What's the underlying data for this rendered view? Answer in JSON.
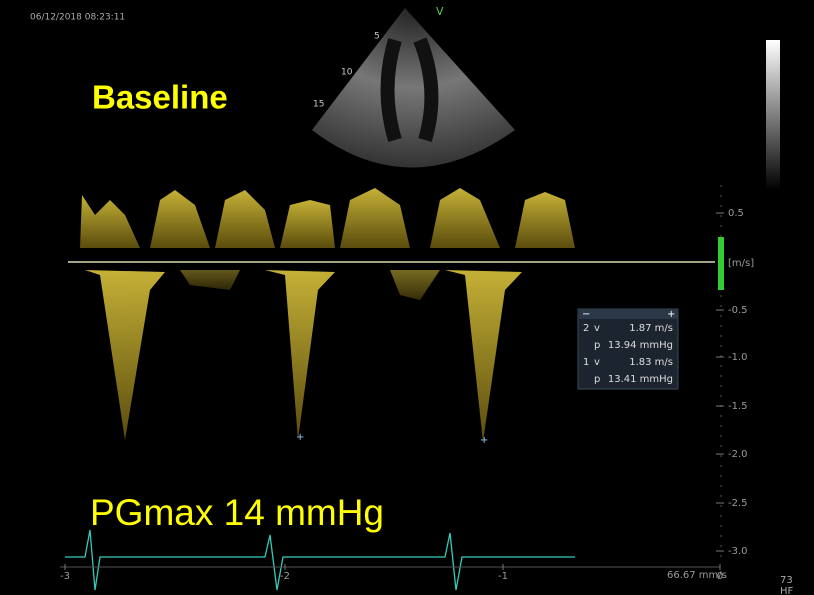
{
  "timestamp": "06/12/2018 08:23:11",
  "sector": {
    "marker": "V",
    "depths": [
      "5",
      "10",
      "15"
    ]
  },
  "labels": {
    "title": "Baseline",
    "result": "PGmax 14 mmHg"
  },
  "velocity_scale": {
    "unit": "[m/s]",
    "ticks": [
      "0.5",
      "-0.5",
      "-1.0",
      "-1.5",
      "-2.0",
      "-2.5",
      "-3.0"
    ]
  },
  "time_axis": {
    "ticks": [
      "-3",
      "-2",
      "-1",
      "0"
    ],
    "sweep": "66.67 mm/s"
  },
  "measurements": {
    "rows": [
      {
        "id": "2",
        "key": "v",
        "value": "1.87 m/s"
      },
      {
        "key": "p",
        "value": "13.94 mmHg"
      },
      {
        "id": "1",
        "key": "v",
        "value": "1.83 m/s"
      },
      {
        "key": "p",
        "value": "13.41 mmHg"
      }
    ]
  },
  "corner": [
    "73",
    "HF"
  ]
}
